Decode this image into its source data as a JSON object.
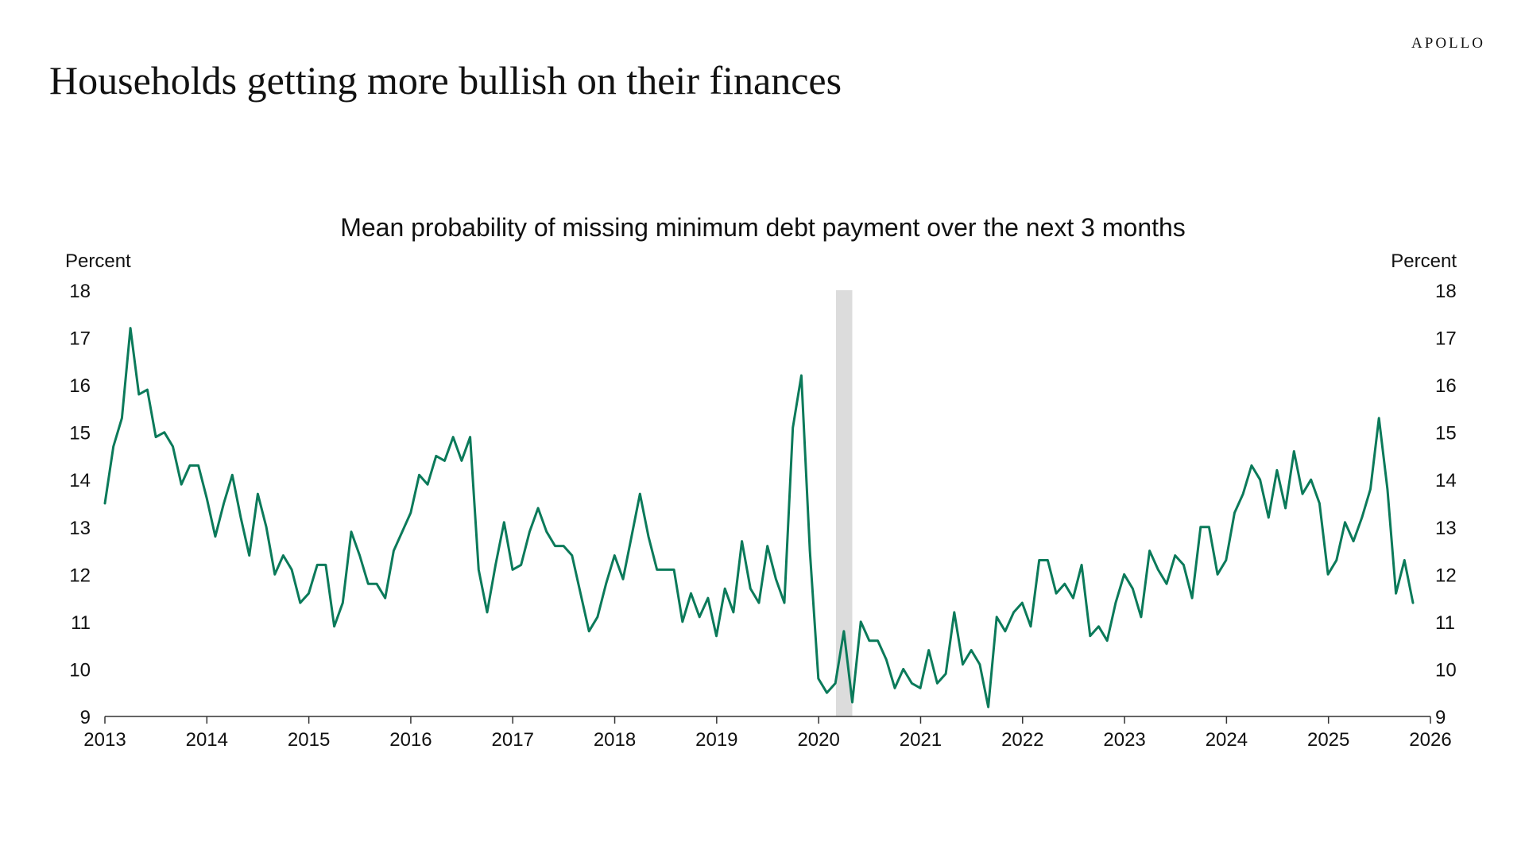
{
  "brand": "APOLLO",
  "title": "Households getting more bullish on their finances",
  "colors": {
    "line": "#0B7A5A",
    "recession": "#DCDCDC",
    "axis": "#333333",
    "text": "#111111"
  },
  "chart_data": {
    "type": "line",
    "title": "Mean probability of missing minimum debt payment over the next 3 months",
    "ylabel_left": "Percent",
    "ylabel_right": "Percent",
    "ylim": [
      9,
      18
    ],
    "yticks": [
      9,
      10,
      11,
      12,
      13,
      14,
      15,
      16,
      17,
      18
    ],
    "xlim": [
      2013,
      2026
    ],
    "xticks": [
      "2013",
      "2014",
      "2015",
      "2016",
      "2017",
      "2018",
      "2019",
      "2020",
      "2021",
      "2022",
      "2023",
      "2024",
      "2025",
      "2026"
    ],
    "grid": false,
    "shaded_period": {
      "label": "recession",
      "start": 2020.17,
      "end": 2020.33
    },
    "series": [
      {
        "x_start": 2013.0,
        "x_step": 0.0833,
        "values": [
          13.5,
          14.7,
          15.3,
          17.2,
          15.8,
          15.9,
          14.9,
          15.0,
          14.7,
          13.9,
          14.3,
          14.3,
          13.6,
          12.8,
          13.5,
          14.1,
          13.2,
          12.4,
          13.7,
          13.0,
          12.0,
          12.4,
          12.1,
          11.4,
          11.6,
          12.2,
          12.2,
          10.9,
          11.4,
          12.9,
          12.4,
          11.8,
          11.8,
          11.5,
          12.5,
          12.9,
          13.3,
          14.1,
          13.9,
          14.5,
          14.4,
          14.9,
          14.4,
          14.9,
          12.1,
          11.2,
          12.2,
          13.1,
          12.1,
          12.2,
          12.9,
          13.4,
          12.9,
          12.6,
          12.6,
          12.4,
          11.6,
          10.8,
          11.1,
          11.8,
          12.4,
          11.9,
          12.8,
          13.7,
          12.8,
          12.1,
          12.1,
          12.1,
          11.0,
          11.6,
          11.1,
          11.5,
          10.7,
          11.7,
          11.2,
          12.7,
          11.7,
          11.4,
          12.6,
          11.9,
          11.4,
          15.1,
          16.2,
          12.5,
          9.8,
          9.5,
          9.7,
          10.8,
          9.3,
          11.0,
          10.6,
          10.6,
          10.2,
          9.6,
          10.0,
          9.7,
          9.6,
          10.4,
          9.7,
          9.9,
          11.2,
          10.1,
          10.4,
          10.1,
          9.2,
          11.1,
          10.8,
          11.2,
          11.4,
          10.9,
          12.3,
          12.3,
          11.6,
          11.8,
          11.5,
          12.2,
          10.7,
          10.9,
          10.6,
          11.4,
          12.0,
          11.7,
          11.1,
          12.5,
          12.1,
          11.8,
          12.4,
          12.2,
          11.5,
          13.0,
          13.0,
          12.0,
          12.3,
          13.3,
          13.7,
          14.3,
          14.0,
          13.2,
          14.2,
          13.4,
          14.6,
          13.7,
          14.0,
          13.5,
          12.0,
          12.3,
          13.1,
          12.7,
          13.2,
          13.8,
          15.3,
          13.8,
          11.6,
          12.3,
          11.4
        ]
      }
    ]
  }
}
